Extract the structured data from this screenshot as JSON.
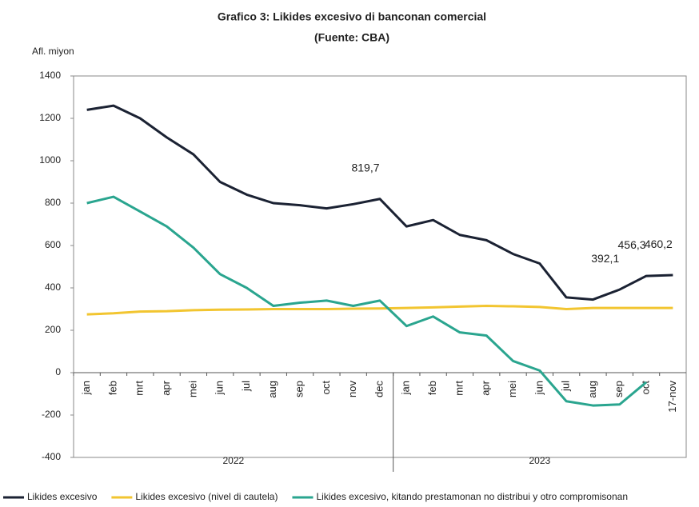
{
  "chart_data": {
    "type": "line",
    "title": "Grafico 3: Likides excesivo di banconan comercial",
    "subtitle": "(Fuente: CBA)",
    "y_label": "Afl. miyon",
    "categories": [
      "jan",
      "feb",
      "mrt",
      "apr",
      "mei",
      "jun",
      "jul",
      "aug",
      "sep",
      "oct",
      "nov",
      "dec",
      "jan",
      "feb",
      "mrt",
      "apr",
      "mei",
      "jun",
      "jul",
      "aug",
      "sep",
      "oct",
      "17-nov"
    ],
    "year_labels": [
      "2022",
      "2023"
    ],
    "series": [
      {
        "name": "Likides excesivo",
        "color": "#1b2233",
        "values": [
          1240,
          1260,
          1200,
          1110,
          1030,
          900,
          840,
          800,
          790,
          775,
          795,
          819.7,
          690,
          720,
          650,
          625,
          560,
          515,
          355,
          345,
          392.1,
          456.3,
          460.2
        ],
        "value_labels": [
          null,
          null,
          null,
          null,
          null,
          null,
          null,
          null,
          null,
          null,
          null,
          "819,7",
          null,
          null,
          null,
          null,
          null,
          null,
          null,
          null,
          "392,1",
          "456,3",
          "460,2"
        ]
      },
      {
        "name": "Likides excesivo (nivel di cautela)",
        "color": "#f2c530",
        "values": [
          275,
          280,
          288,
          290,
          295,
          297,
          298,
          300,
          300,
          300,
          302,
          303,
          305,
          308,
          312,
          315,
          313,
          310,
          300,
          305,
          305,
          305,
          305
        ]
      },
      {
        "name": "Likides excesivo, kitando prestamonan no distribui y otro compromisonan",
        "color": "#2aa58f",
        "values": [
          800,
          830,
          760,
          690,
          590,
          465,
          400,
          315,
          330,
          340,
          315,
          340,
          220,
          265,
          190,
          175,
          55,
          10,
          -135,
          -155,
          -150,
          -45,
          null
        ]
      }
    ],
    "ylim": [
      -400,
      1400
    ],
    "yticks": [
      -400,
      -200,
      0,
      200,
      400,
      600,
      800,
      1000,
      1200,
      1400
    ],
    "grid": false,
    "legend": "bottom"
  }
}
